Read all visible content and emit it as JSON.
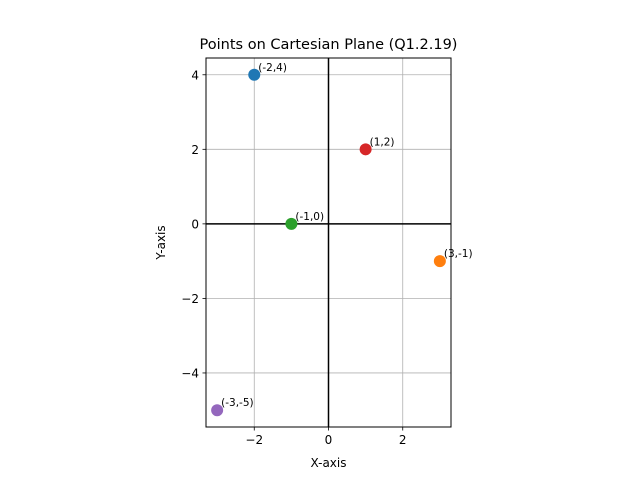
{
  "chart_data": {
    "type": "scatter",
    "title": "Points on Cartesian Plane (Q1.2.19)",
    "xlabel": "X-axis",
    "ylabel": "Y-axis",
    "xlim": [
      -3.3,
      3.3
    ],
    "ylim": [
      -5.45,
      4.45
    ],
    "xticks": [
      {
        "value": -2,
        "label": "−2"
      },
      {
        "value": 0,
        "label": "0"
      },
      {
        "value": 2,
        "label": "2"
      }
    ],
    "yticks": [
      {
        "value": -4,
        "label": "−4"
      },
      {
        "value": -2,
        "label": "−2"
      },
      {
        "value": 0,
        "label": "0"
      },
      {
        "value": 2,
        "label": "2"
      },
      {
        "value": 4,
        "label": "4"
      }
    ],
    "grid": true,
    "axis_lines_at_origin": true,
    "points": [
      {
        "x": -2,
        "y": 4,
        "label": "(-2,4)",
        "color": "#1f77b4"
      },
      {
        "x": 3,
        "y": -1,
        "label": "(3,-1)",
        "color": "#ff7f0e"
      },
      {
        "x": -1,
        "y": 0,
        "label": "(-1,0)",
        "color": "#2ca02c"
      },
      {
        "x": 1,
        "y": 2,
        "label": "(1,2)",
        "color": "#d62728"
      },
      {
        "x": -3,
        "y": -5,
        "label": "(-3,-5)",
        "color": "#9467bd"
      }
    ]
  }
}
